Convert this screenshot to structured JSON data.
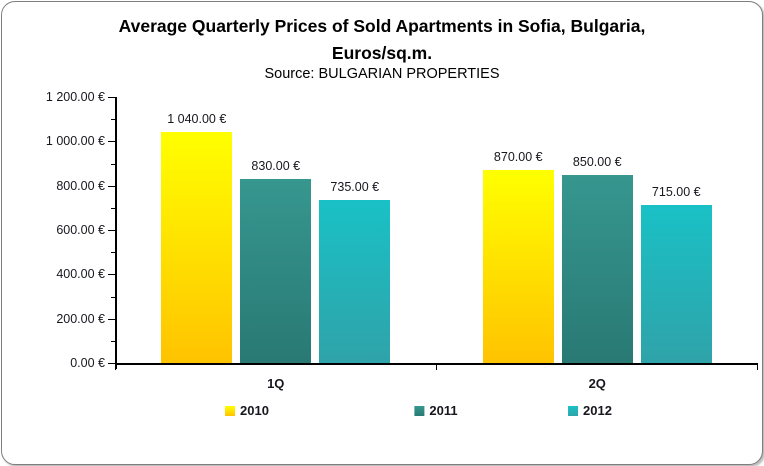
{
  "frame": {
    "border_color": "#7e7e7e",
    "background": "#ffffff"
  },
  "header": {
    "title_line1": "Average Quarterly Prices of Sold Apartments in Sofia, Bulgaria,",
    "title_line2": "Euros/sq.m.",
    "subtitle": "Source: BULGARIAN PROPERTIES"
  },
  "chart_data": {
    "type": "bar",
    "title": "Average Quarterly Prices of Sold Apartments in Sofia, Bulgaria, Euros/sq.m.",
    "subtitle": "Source: BULGARIAN PROPERTIES",
    "categories": [
      "1Q",
      "2Q"
    ],
    "series": [
      {
        "name": "2010",
        "values": [
          1040,
          870
        ],
        "labels": [
          "1 040.00 €",
          "870.00 €"
        ],
        "color_top": "#ffff00",
        "color_bottom": "#ffc300"
      },
      {
        "name": "2011",
        "values": [
          830,
          850
        ],
        "labels": [
          "830.00 €",
          "850.00 €"
        ],
        "color_top": "#36978f",
        "color_bottom": "#297974"
      },
      {
        "name": "2012",
        "values": [
          735,
          715
        ],
        "labels": [
          "735.00 €",
          "715.00 €"
        ],
        "color_top": "#19c1c6",
        "color_bottom": "#2fa3a9"
      }
    ],
    "ylim": [
      0,
      1200
    ],
    "y_major_step": 200,
    "y_minor_step": 100,
    "y_tick_labels_top_to_bottom": [
      "1 200.00 €",
      "1 000.00 €",
      "800.00 €",
      "600.00 €",
      "400.00 €",
      "200.00 €",
      "0.00 €"
    ],
    "grid": false,
    "legend_position": "bottom",
    "legend": [
      "2010",
      "2011",
      "2012"
    ]
  }
}
